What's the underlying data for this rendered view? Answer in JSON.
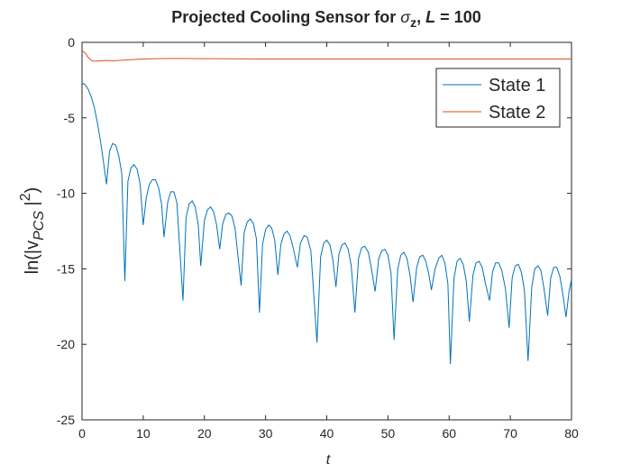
{
  "chart_data": {
    "type": "line",
    "title": [
      "Projected Cooling Sensor for ",
      "σ",
      "z",
      ", ",
      "L",
      " = 100"
    ],
    "xlabel": "t",
    "ylabel": [
      "ln(|v",
      "PCS",
      " |",
      "2",
      ")"
    ],
    "xlim": [
      0,
      80
    ],
    "xticks": [
      0,
      10,
      20,
      30,
      40,
      50,
      60,
      70,
      80
    ],
    "ylim": [
      -25,
      0
    ],
    "yticks": [
      -25,
      -20,
      -15,
      -10,
      -5,
      0
    ],
    "legend": "top-right",
    "series": [
      {
        "name": "State 1",
        "color": "#0072BD",
        "x": [
          0,
          0.5,
          1,
          1.5,
          2,
          2.5,
          3,
          3.5,
          4,
          4.5,
          5,
          5.5,
          6,
          6.5,
          7,
          7.5,
          8,
          8.5,
          9,
          9.5,
          10,
          10.5,
          11,
          11.5,
          12,
          12.5,
          13,
          13.4,
          14,
          14.5,
          15,
          15.5,
          16.5,
          17,
          17.5,
          18,
          18.5,
          19,
          19.4,
          20,
          20.5,
          21,
          21.5,
          22,
          22.5,
          23,
          23.5,
          24,
          24.5,
          25,
          26,
          26.5,
          27,
          27.5,
          28,
          28.5,
          29,
          29.5,
          30,
          30.5,
          31,
          31.5,
          32,
          32.5,
          33,
          33.5,
          34,
          34.5,
          35.2,
          35.7,
          36.3,
          36.8,
          37.4,
          38.4,
          39,
          39.5,
          40,
          40.5,
          41,
          41.5,
          42,
          42.5,
          43,
          43.5,
          44,
          44.6,
          45.2,
          45.7,
          46.2,
          46.8,
          47.3,
          47.9,
          48.5,
          49,
          49.5,
          50,
          50.5,
          51,
          51.6,
          52.1,
          52.6,
          53.1,
          53.6,
          54.1,
          54.7,
          55.2,
          55.7,
          56.2,
          56.7,
          57.1,
          57.7,
          58.3,
          58.8,
          59.3,
          59.8,
          60.2,
          60.8,
          61.3,
          61.8,
          62.3,
          62.8,
          63.3,
          63.9,
          64.4,
          64.9,
          65.4,
          65.9,
          66.6,
          67.1,
          67.6,
          68.1,
          68.6,
          69.2,
          69.8,
          70.3,
          70.8,
          71.3,
          71.8,
          72.3,
          72.9,
          73.5,
          74,
          74.5,
          75,
          75.5,
          76.1,
          76.6,
          77.1,
          77.6,
          78.1,
          78.6,
          79.1,
          79.6,
          80
        ],
        "values": [
          -2.7,
          -2.8,
          -3.1,
          -3.6,
          -4.3,
          -5.3,
          -6.5,
          -7.9,
          -9.4,
          -7.2,
          -6.7,
          -6.8,
          -7.5,
          -8.7,
          -15.8,
          -9.2,
          -8.3,
          -8.1,
          -8.4,
          -9.4,
          -12.1,
          -10.3,
          -9.4,
          -9.1,
          -9.1,
          -9.6,
          -10.7,
          -12.9,
          -10.6,
          -9.9,
          -9.9,
          -10.6,
          -17.1,
          -11.6,
          -10.7,
          -10.5,
          -10.9,
          -12.1,
          -14.8,
          -11.8,
          -11.1,
          -10.9,
          -11.2,
          -12.1,
          -13.7,
          -12.0,
          -11.4,
          -11.3,
          -11.5,
          -12.3,
          -16.1,
          -12.6,
          -11.9,
          -11.7,
          -12.0,
          -13.0,
          -17.9,
          -13.4,
          -12.4,
          -12.1,
          -12.3,
          -13.1,
          -15.4,
          -13.4,
          -12.7,
          -12.5,
          -12.8,
          -13.6,
          -14.9,
          -13.3,
          -12.8,
          -12.9,
          -13.8,
          -19.9,
          -14.2,
          -13.3,
          -13.1,
          -13.4,
          -14.4,
          -16.2,
          -14.0,
          -13.4,
          -13.3,
          -13.7,
          -14.8,
          -17.9,
          -14.3,
          -13.6,
          -13.5,
          -13.9,
          -15.0,
          -16.5,
          -14.3,
          -13.8,
          -13.7,
          -14.1,
          -15.3,
          -19.7,
          -15.0,
          -14.1,
          -13.9,
          -14.3,
          -15.4,
          -17.2,
          -14.9,
          -14.2,
          -14.1,
          -14.5,
          -15.4,
          -16.4,
          -15.0,
          -14.3,
          -14.1,
          -14.6,
          -16.0,
          -21.3,
          -15.6,
          -14.5,
          -14.3,
          -14.7,
          -15.8,
          -18.5,
          -15.4,
          -14.6,
          -14.5,
          -14.9,
          -15.9,
          -17.1,
          -15.2,
          -14.6,
          -14.6,
          -15.1,
          -16.3,
          -18.9,
          -15.6,
          -14.8,
          -14.7,
          -15.2,
          -16.4,
          -21.1,
          -16.2,
          -15.0,
          -14.8,
          -15.1,
          -16.3,
          -18.1,
          -15.6,
          -14.9,
          -14.9,
          -15.5,
          -16.7,
          -18.2,
          -16.5,
          -15.7
        ]
      },
      {
        "name": "State 2",
        "color": "#D95319",
        "x": [
          0,
          0.5,
          1,
          1.5,
          2,
          3,
          4,
          5,
          6,
          8,
          10,
          12,
          15,
          20,
          30,
          40,
          50,
          60,
          70,
          80
        ],
        "values": [
          -0.55,
          -0.7,
          -1.0,
          -1.2,
          -1.25,
          -1.22,
          -1.2,
          -1.22,
          -1.2,
          -1.15,
          -1.1,
          -1.08,
          -1.07,
          -1.08,
          -1.1,
          -1.1,
          -1.1,
          -1.1,
          -1.1,
          -1.1
        ]
      }
    ]
  }
}
